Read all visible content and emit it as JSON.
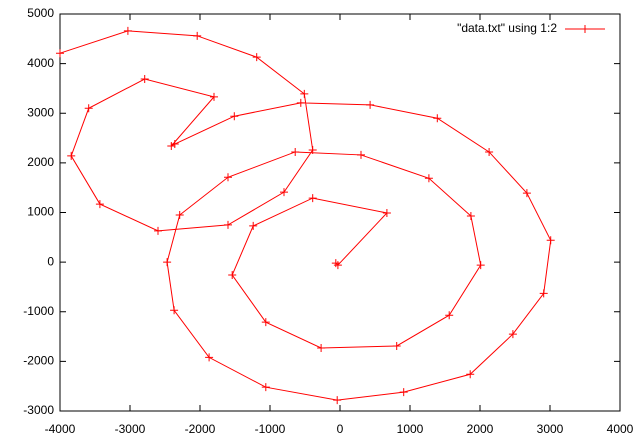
{
  "chart_data": {
    "type": "line",
    "x": [
      -60,
      -30,
      670,
      -390,
      -1240,
      -1540,
      -1060,
      -270,
      810,
      1560,
      2010,
      1870,
      1270,
      300,
      -640,
      -1600,
      -2290,
      -2470,
      -2370,
      -1870,
      -1060,
      -40,
      910,
      1860,
      2470,
      2910,
      3010,
      2670,
      2130,
      1390,
      430,
      -560,
      -1510,
      -2360,
      -2410,
      -1800,
      -2790,
      -3590,
      -3840,
      -3430,
      -2600,
      -1600,
      -800,
      -390,
      -510,
      -1190,
      -2040,
      -3030,
      -4000
    ],
    "series": [
      {
        "name": "\"data.txt\" using 1:2",
        "color": "#ff0000",
        "values": [
          -20,
          -60,
          990,
          1290,
          730,
          -260,
          -1210,
          -1730,
          -1690,
          -1070,
          -60,
          930,
          1690,
          2160,
          2220,
          1710,
          950,
          0,
          -970,
          -1920,
          -2520,
          -2780,
          -2620,
          -2260,
          -1450,
          -630,
          440,
          1390,
          2220,
          2900,
          3170,
          3210,
          2940,
          2380,
          2340,
          3330,
          3690,
          3100,
          2140,
          1170,
          630,
          750,
          1410,
          2260,
          3390,
          4130,
          4560,
          4660,
          4210
        ]
      }
    ],
    "xlim": [
      -4000,
      4000
    ],
    "xticks": [
      -4000,
      -3000,
      -2000,
      -1000,
      0,
      1000,
      2000,
      3000,
      4000
    ],
    "ylim": [
      -3000,
      5000
    ],
    "yticks": [
      -3000,
      -2000,
      -1000,
      0,
      1000,
      2000,
      3000,
      4000,
      5000
    ],
    "grid": false,
    "legend": "top-right"
  }
}
